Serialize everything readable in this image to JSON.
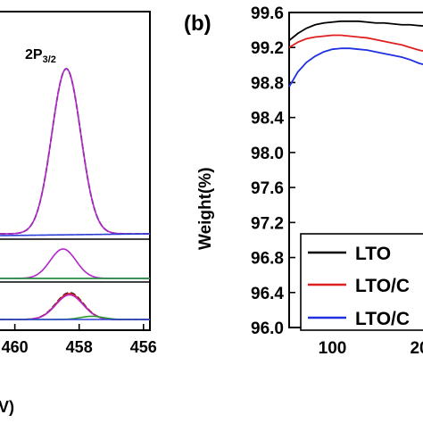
{
  "chart_data": [
    {
      "panel": "a",
      "type": "line",
      "peak_label": "2P",
      "peak_label_sub": "3/2",
      "xlabel_fragment": "V)",
      "x_ticks": [
        "460",
        "458",
        "456"
      ],
      "xlim": [
        460.6,
        455.8
      ],
      "subplots": [
        {
          "name": "top",
          "series": [
            {
              "color": "#1a1a1a",
              "style": "dashed",
              "peak_x": 458.4,
              "height": 1.0,
              "width": 0.45
            },
            {
              "color": "#b026c8",
              "style": "solid",
              "peak_x": 458.4,
              "height": 1.0,
              "width": 0.45
            },
            {
              "color": "#2a3fd6",
              "style": "solid",
              "baseline": true
            }
          ]
        },
        {
          "name": "middle",
          "series": [
            {
              "color": "#b026c8",
              "style": "solid",
              "peak_x": 458.5,
              "height": 1.0,
              "width": 0.4
            },
            {
              "color": "#2a3fd6",
              "style": "solid",
              "baseline": true
            },
            {
              "color": "#2e9a2e",
              "style": "solid",
              "baseline": true
            }
          ]
        },
        {
          "name": "bottom",
          "series": [
            {
              "color": "#1a1a1a",
              "style": "dashed",
              "peak_x": 458.3,
              "height": 1.0,
              "width": 0.42
            },
            {
              "color": "#e02020",
              "style": "solid",
              "peak_x": 458.3,
              "height": 0.97,
              "width": 0.42
            },
            {
              "color": "#b026c8",
              "style": "solid",
              "peak_x": 458.3,
              "height": 0.92,
              "width": 0.42
            },
            {
              "color": "#2e9a2e",
              "style": "solid",
              "peak_x": 457.6,
              "height": 0.12,
              "width": 0.35
            },
            {
              "color": "#2a3fd6",
              "style": "solid",
              "baseline": true
            }
          ]
        }
      ]
    },
    {
      "panel": "b",
      "panel_label": "(b)",
      "type": "line",
      "ylabel": "Weight(%)",
      "ylim": [
        96.0,
        99.6
      ],
      "y_ticks": [
        "99.6",
        "99.2",
        "98.8",
        "98.4",
        "98.0",
        "97.6",
        "97.2",
        "96.8",
        "96.4",
        "96.0"
      ],
      "xlim": [
        50,
        215
      ],
      "x_ticks": [
        "100",
        "20"
      ],
      "legend_position": "bottom-left",
      "series": [
        {
          "name": "LTO",
          "color": "#000000",
          "x": [
            50,
            60,
            70,
            80,
            90,
            100,
            110,
            120,
            130,
            140,
            150,
            160,
            170,
            180,
            190,
            200,
            215
          ],
          "y": [
            99.28,
            99.36,
            99.42,
            99.46,
            99.48,
            99.49,
            99.5,
            99.5,
            99.5,
            99.49,
            99.48,
            99.48,
            99.47,
            99.46,
            99.46,
            99.45,
            99.44
          ]
        },
        {
          "name": "LTO/C",
          "color": "#e02020",
          "x": [
            50,
            60,
            70,
            80,
            90,
            100,
            110,
            120,
            130,
            140,
            150,
            160,
            170,
            180,
            190,
            200,
            215
          ],
          "y": [
            99.2,
            99.26,
            99.3,
            99.32,
            99.33,
            99.34,
            99.34,
            99.33,
            99.32,
            99.31,
            99.29,
            99.27,
            99.25,
            99.23,
            99.2,
            99.17,
            99.14
          ]
        },
        {
          "name": "LTO/C",
          "color": "#2030e0",
          "x": [
            50,
            60,
            70,
            80,
            90,
            100,
            110,
            120,
            130,
            140,
            150,
            160,
            170,
            180,
            190,
            200,
            215
          ],
          "y": [
            98.75,
            98.92,
            99.03,
            99.1,
            99.15,
            99.18,
            99.19,
            99.19,
            99.18,
            99.17,
            99.15,
            99.13,
            99.11,
            99.09,
            99.06,
            99.02,
            98.98
          ]
        }
      ]
    }
  ]
}
